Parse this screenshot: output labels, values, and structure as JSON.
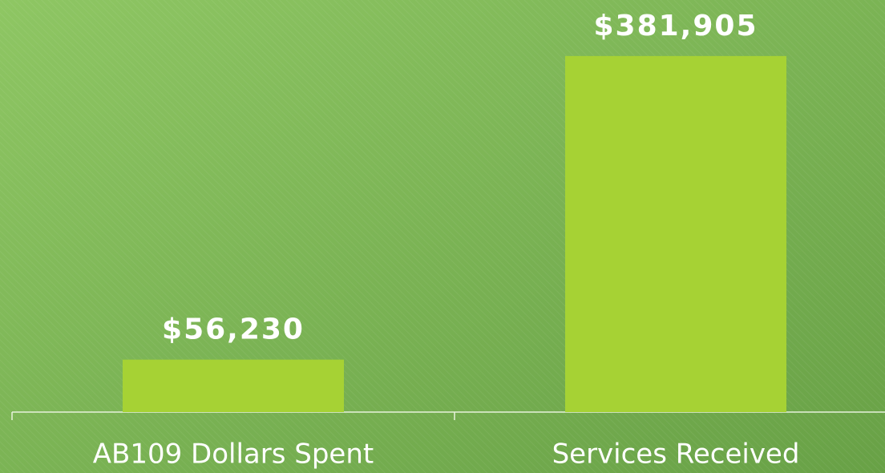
{
  "chart_data": {
    "type": "bar",
    "categories": [
      "AB109 Dollars Spent",
      "Services Received"
    ],
    "values": [
      56230,
      381905
    ],
    "value_labels": [
      "$56,230",
      "$381,905"
    ],
    "color": "#a6d234",
    "ylim": [
      0,
      442000
    ]
  }
}
